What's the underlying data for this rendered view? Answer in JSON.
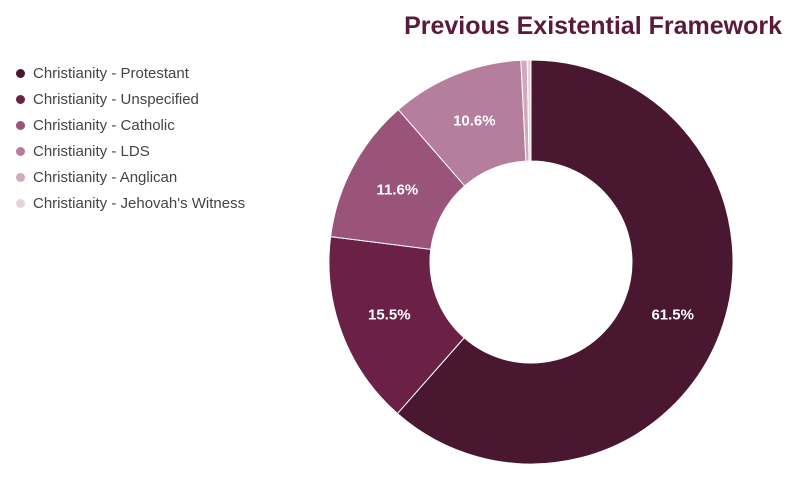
{
  "chart_data": {
    "type": "pie",
    "subtype": "donut",
    "title": "Previous Existential Framework",
    "legend_position": "left",
    "slices": [
      {
        "label": "Christianity - Protestant",
        "value": 61.5,
        "display": "61.5%",
        "color": "#4a1730"
      },
      {
        "label": "Christianity - Unspecified",
        "value": 15.5,
        "display": "15.5%",
        "color": "#6b2146"
      },
      {
        "label": "Christianity - Catholic",
        "value": 11.6,
        "display": "11.6%",
        "color": "#9a5479"
      },
      {
        "label": "Christianity - LDS",
        "value": 10.6,
        "display": "10.6%",
        "color": "#b57e9c"
      },
      {
        "label": "Christianity - Anglican",
        "value": 0.5,
        "display": "",
        "color": "#d1a8bd"
      },
      {
        "label": "Christianity - Jehovah's Witness",
        "value": 0.3,
        "display": "",
        "color": "#e8d3dd"
      }
    ]
  }
}
